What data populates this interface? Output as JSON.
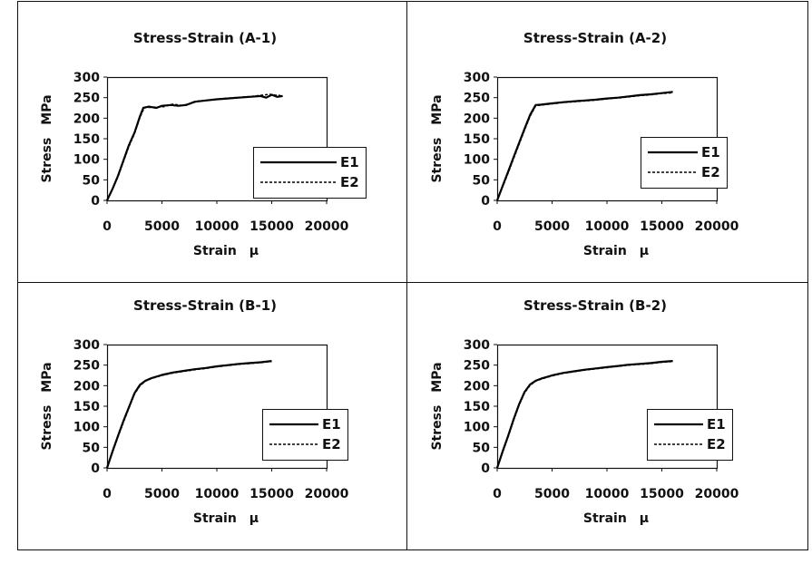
{
  "chart_data": [
    {
      "type": "line",
      "title": "Stress-Strain (A-1)",
      "xlabel": "Strain　μ",
      "ylabel": "Stress　MPa",
      "xlim": [
        0,
        20000
      ],
      "ylim": [
        0,
        300
      ],
      "xticks": [
        "0",
        "5000",
        "10000",
        "15000",
        "20000"
      ],
      "yticks": [
        "0",
        "50",
        "100",
        "150",
        "200",
        "250",
        "300"
      ],
      "grid": false,
      "legend_position": "bottom-right",
      "series": [
        {
          "name": "E1",
          "style": "solid",
          "color": "#000000",
          "x": [
            0,
            500,
            1000,
            1500,
            2000,
            2500,
            3000,
            3300,
            3800,
            4500,
            5000,
            5800,
            6500,
            7200,
            8000,
            9000,
            10000,
            11000,
            12000,
            13000,
            14000,
            14500,
            15000,
            15500,
            16000
          ],
          "y": [
            0,
            28,
            60,
            98,
            135,
            165,
            205,
            225,
            228,
            225,
            230,
            232,
            230,
            232,
            240,
            243,
            246,
            248,
            250,
            252,
            254,
            250,
            257,
            252,
            254
          ]
        },
        {
          "name": "E2",
          "style": "dashed",
          "color": "#000000",
          "x": [
            0,
            500,
            1000,
            1500,
            2000,
            2500,
            3000,
            3400,
            3900,
            4600,
            5200,
            6000,
            6800,
            7500,
            8200,
            9200,
            10200,
            11200,
            12200,
            13200,
            14200,
            14800,
            15300,
            15800
          ],
          "y": [
            0,
            27,
            58,
            96,
            132,
            163,
            202,
            226,
            226,
            227,
            228,
            234,
            231,
            235,
            241,
            244,
            247,
            249,
            251,
            253,
            256,
            258,
            256,
            255
          ]
        }
      ]
    },
    {
      "type": "line",
      "title": "Stress-Strain (A-2)",
      "xlabel": "Strain　μ",
      "ylabel": "Stress　MPa",
      "xlim": [
        0,
        20000
      ],
      "ylim": [
        0,
        300
      ],
      "xticks": [
        "0",
        "5000",
        "10000",
        "15000",
        "20000"
      ],
      "yticks": [
        "0",
        "50",
        "100",
        "150",
        "200",
        "250",
        "300"
      ],
      "grid": false,
      "legend_position": "middle-right",
      "series": [
        {
          "name": "E1",
          "style": "solid",
          "color": "#000000",
          "x": [
            0,
            500,
            1000,
            1500,
            2000,
            2500,
            3000,
            3500,
            4000,
            5000,
            6000,
            7000,
            8000,
            9000,
            10000,
            11000,
            12000,
            13000,
            14000,
            15000,
            16000
          ],
          "y": [
            0,
            35,
            70,
            105,
            140,
            175,
            208,
            232,
            233,
            236,
            239,
            241,
            243,
            245,
            248,
            250,
            253,
            256,
            258,
            261,
            264
          ]
        },
        {
          "name": "E2",
          "style": "dashed",
          "color": "#000000",
          "x": [
            0,
            500,
            1000,
            1500,
            2000,
            2500,
            3000,
            3500,
            4000,
            5000,
            6000,
            7000,
            8000,
            9000,
            10000,
            11000,
            12000,
            13000,
            14000,
            15000,
            16000
          ],
          "y": [
            0,
            33,
            67,
            102,
            137,
            172,
            205,
            230,
            232,
            235,
            238,
            240,
            242,
            244,
            247,
            249,
            252,
            255,
            257,
            260,
            262
          ]
        }
      ]
    },
    {
      "type": "line",
      "title": "Stress-Strain (B-1)",
      "xlabel": "Strain　μ",
      "ylabel": "Stress　MPa",
      "xlim": [
        0,
        20000
      ],
      "ylim": [
        0,
        300
      ],
      "xticks": [
        "0",
        "5000",
        "10000",
        "15000",
        "20000"
      ],
      "yticks": [
        "0",
        "50",
        "100",
        "150",
        "200",
        "250",
        "300"
      ],
      "grid": false,
      "legend_position": "bottom-right",
      "series": [
        {
          "name": "E1",
          "style": "solid",
          "color": "#000000",
          "x": [
            0,
            500,
            1000,
            1500,
            2000,
            2500,
            3000,
            3500,
            4000,
            5000,
            6000,
            7000,
            8000,
            9000,
            10000,
            11000,
            12000,
            13000,
            14000,
            15000
          ],
          "y": [
            0,
            40,
            78,
            115,
            148,
            182,
            202,
            212,
            218,
            226,
            232,
            236,
            240,
            243,
            247,
            250,
            253,
            255,
            257,
            260
          ]
        },
        {
          "name": "E2",
          "style": "dashed",
          "color": "#000000",
          "x": [
            0,
            500,
            1000,
            1500,
            2000,
            2500,
            3000,
            3500,
            4000,
            5000,
            6000,
            7000,
            8000,
            9000,
            10000,
            11000,
            12000,
            13000,
            14000,
            15000
          ],
          "y": [
            0,
            38,
            76,
            112,
            146,
            180,
            200,
            211,
            217,
            225,
            231,
            235,
            239,
            242,
            246,
            249,
            252,
            254,
            256,
            259
          ]
        }
      ]
    },
    {
      "type": "line",
      "title": "Stress-Strain (B-2)",
      "xlabel": "Strain　μ",
      "ylabel": "Stress　MPa",
      "xlim": [
        0,
        20000
      ],
      "ylim": [
        0,
        300
      ],
      "xticks": [
        "0",
        "5000",
        "10000",
        "15000",
        "20000"
      ],
      "yticks": [
        "0",
        "50",
        "100",
        "150",
        "200",
        "250",
        "300"
      ],
      "grid": false,
      "legend_position": "bottom-right",
      "series": [
        {
          "name": "E1",
          "style": "solid",
          "color": "#000000",
          "x": [
            0,
            500,
            1000,
            1500,
            2000,
            2500,
            3000,
            3500,
            4000,
            5000,
            6000,
            7000,
            8000,
            9000,
            10000,
            11000,
            12000,
            13000,
            14000,
            15000,
            16000
          ],
          "y": [
            0,
            40,
            78,
            118,
            155,
            185,
            203,
            212,
            217,
            225,
            231,
            235,
            239,
            242,
            245,
            248,
            251,
            253,
            255,
            258,
            260
          ]
        },
        {
          "name": "E2",
          "style": "dashed",
          "color": "#000000",
          "x": [
            0,
            500,
            1000,
            1500,
            2000,
            2500,
            3000,
            3500,
            4000,
            5000,
            6000,
            7000,
            8000,
            9000,
            10000,
            11000,
            12000,
            13000,
            14000,
            15000,
            16000
          ],
          "y": [
            0,
            38,
            76,
            116,
            153,
            183,
            201,
            211,
            216,
            224,
            230,
            234,
            238,
            241,
            244,
            247,
            250,
            252,
            254,
            257,
            259
          ]
        }
      ]
    }
  ]
}
